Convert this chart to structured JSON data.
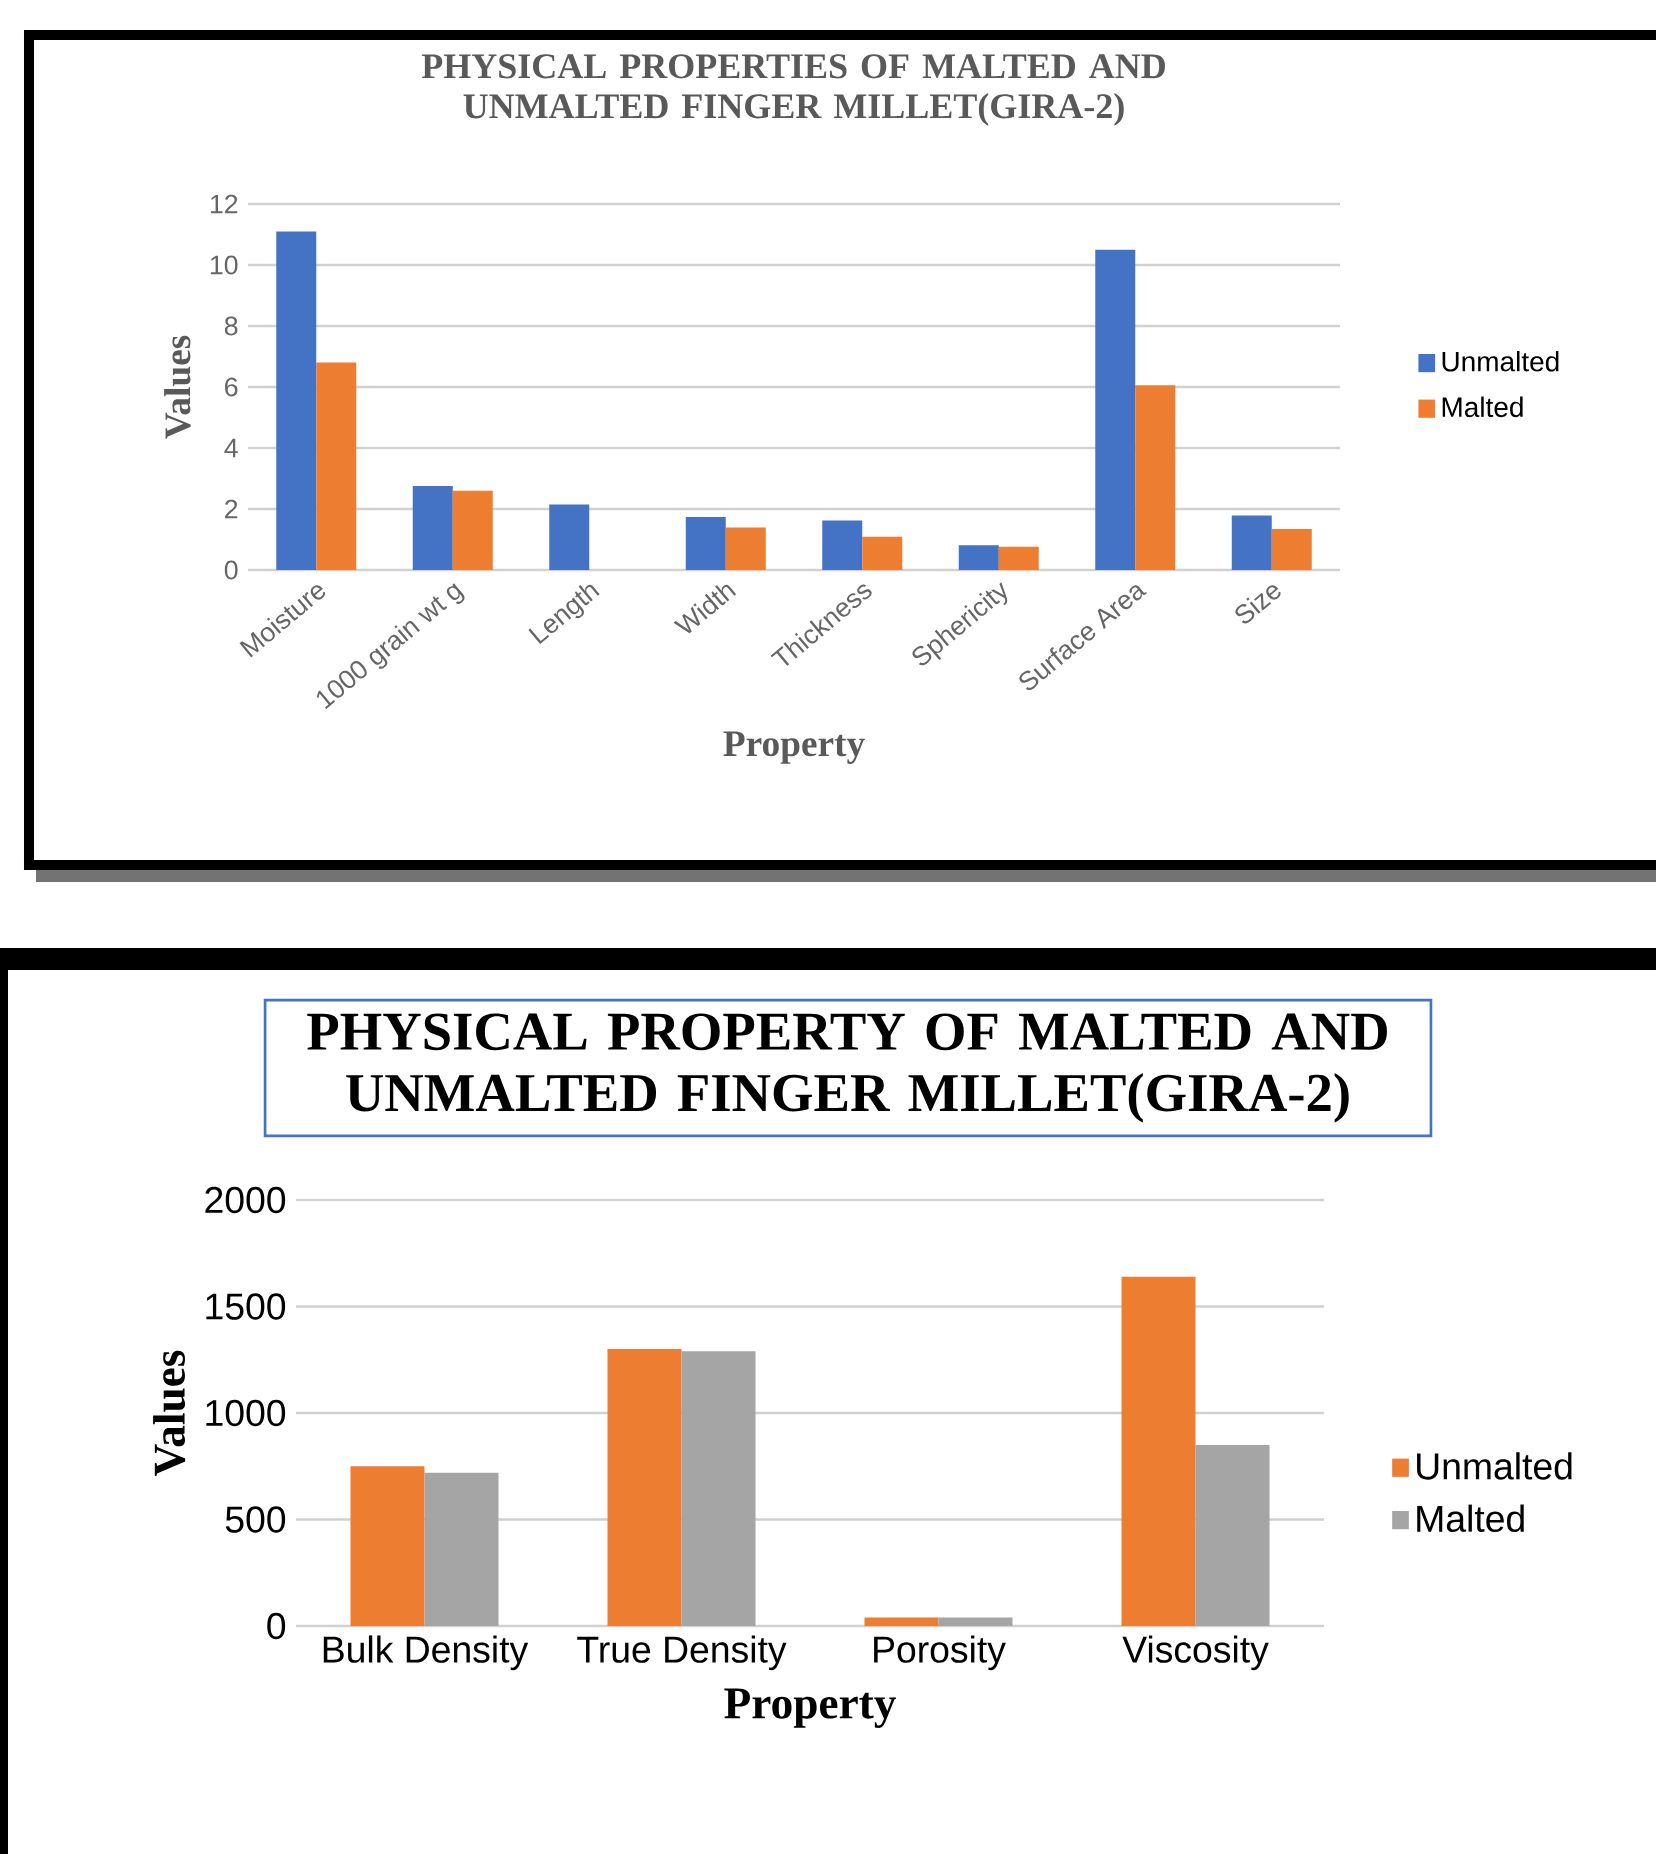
{
  "chart_data": [
    {
      "type": "bar",
      "title": "PHYSICAL PROPERTIES OF MALTED AND UNMALTED FINGER MILLET(GIRA-2)",
      "xlabel": "Property",
      "ylabel": "Values",
      "categories": [
        "Moisture",
        "1000 grain wt g",
        "Length",
        "Width",
        "Thickness",
        "Sphericity",
        "Surface Area",
        "Size"
      ],
      "series": [
        {
          "name": "Unmalted",
          "color": "#4472c4",
          "values": [
            11.1,
            2.75,
            2.15,
            1.74,
            1.62,
            0.81,
            10.5,
            1.79
          ]
        },
        {
          "name": "Malted",
          "color": "#ed7d31",
          "values": [
            6.8,
            2.6,
            null,
            1.39,
            1.09,
            0.76,
            6.06,
            1.34
          ]
        }
      ],
      "ylim": [
        0,
        12
      ],
      "yticks": [
        0,
        2,
        4,
        6,
        8,
        10,
        12
      ],
      "grid": "y",
      "legend": "right"
    },
    {
      "type": "bar",
      "title": "PHYSICAL PROPERTY OF MALTED AND UNMALTED FINGER MILLET(GIRA-2)",
      "xlabel": "Property",
      "ylabel": "Values",
      "categories": [
        "Bulk Density",
        "True Density",
        "Porosity",
        "Viscosity"
      ],
      "series": [
        {
          "name": "Unmalted",
          "color": "#ed7d31",
          "values": [
            750,
            1300,
            40,
            1640
          ]
        },
        {
          "name": "Malted",
          "color": "#a5a5a5",
          "values": [
            720,
            1290,
            40,
            850
          ]
        }
      ],
      "ylim": [
        0,
        2000
      ],
      "yticks": [
        0,
        500,
        1000,
        1500,
        2000
      ],
      "grid": "y",
      "legend": "right"
    }
  ]
}
